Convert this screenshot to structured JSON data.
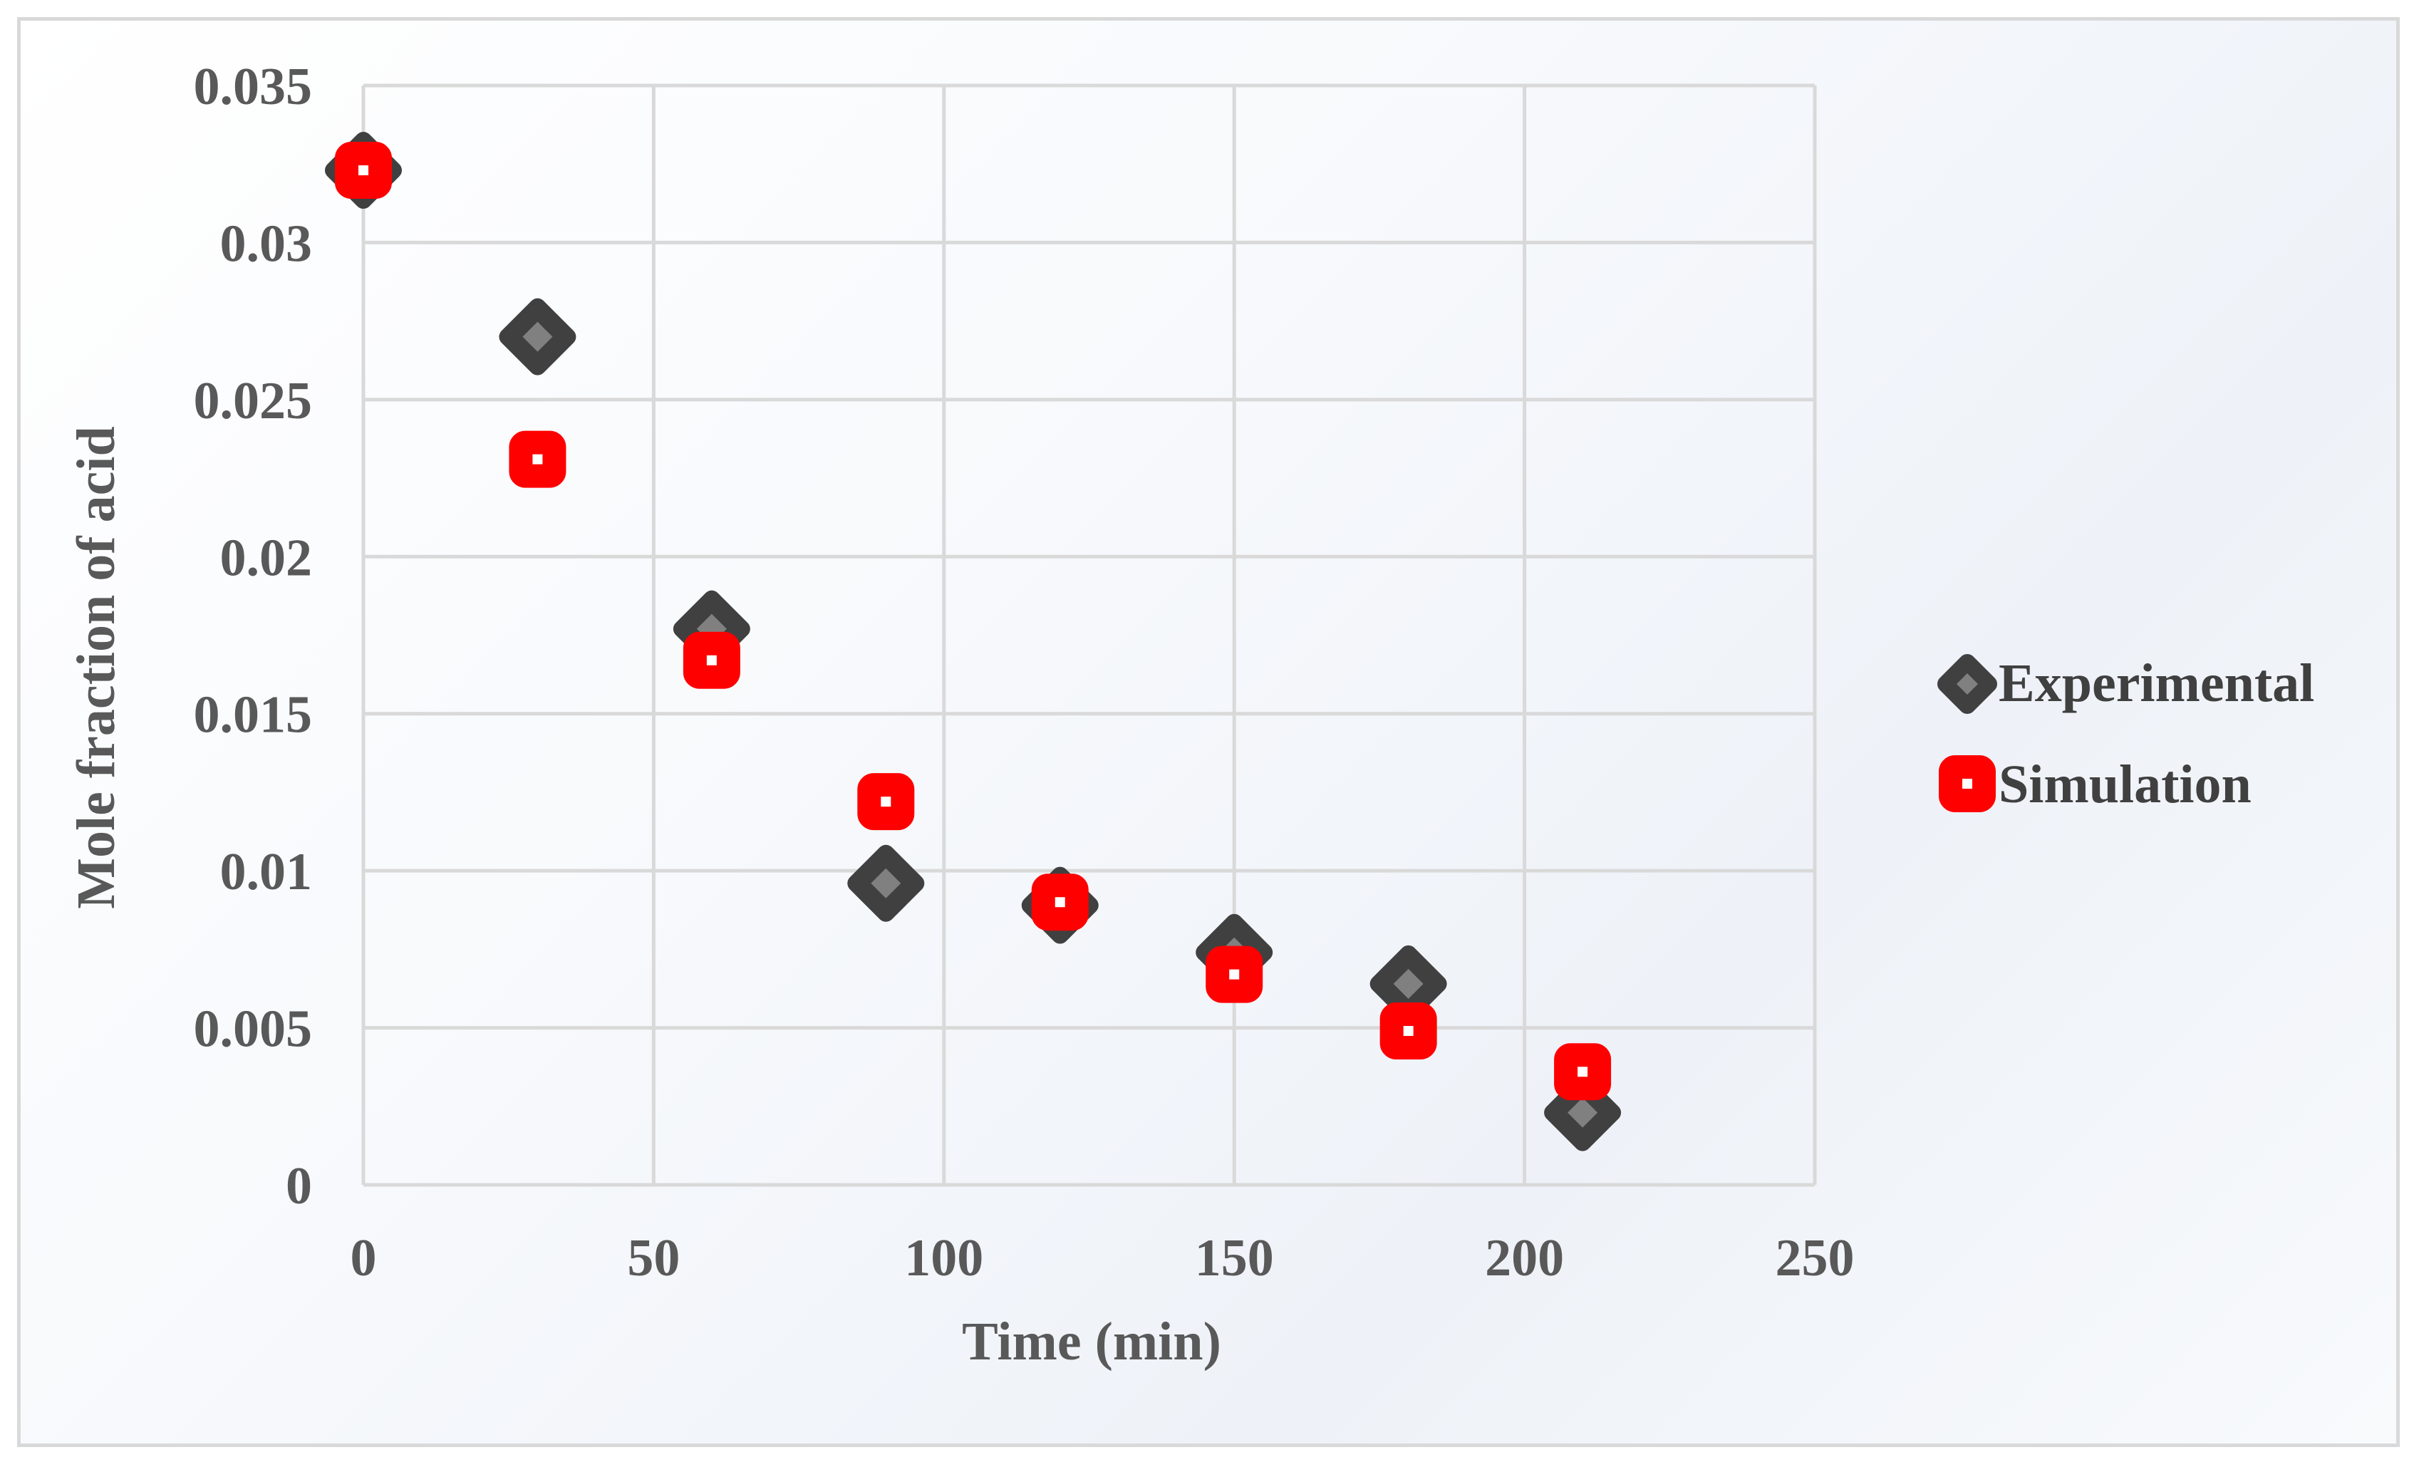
{
  "chart_data": {
    "type": "scatter",
    "title": "",
    "xlabel": "Time (min)",
    "ylabel": "Mole fraction of acid",
    "xlim": [
      0,
      250
    ],
    "ylim": [
      0,
      0.035
    ],
    "xticks": [
      0,
      50,
      100,
      150,
      200,
      250
    ],
    "xtick_labels": [
      "0",
      "50",
      "100",
      "150",
      "200",
      "250"
    ],
    "yticks": [
      0,
      0.005,
      0.01,
      0.015,
      0.02,
      0.025,
      0.03,
      0.035
    ],
    "ytick_labels": [
      "0",
      "0.005",
      "0.01",
      "0.015",
      "0.02",
      "0.025",
      "0.03",
      "0.035"
    ],
    "grid": true,
    "legend_position": "right",
    "series": [
      {
        "name": "Experimental",
        "marker": "diamond",
        "color": "#7f7f7f",
        "edge_color": "#404040",
        "x": [
          0,
          30,
          60,
          90,
          120,
          150,
          180,
          210
        ],
        "y": [
          0.0323,
          0.027,
          0.0177,
          0.0096,
          0.0089,
          0.0074,
          0.0064,
          0.0023
        ]
      },
      {
        "name": "Simulation",
        "marker": "square",
        "color": "#ff0000",
        "edge_color": "#ff0000",
        "x": [
          0,
          30,
          60,
          90,
          120,
          150,
          180,
          210
        ],
        "y": [
          0.0323,
          0.0231,
          0.0167,
          0.0122,
          0.009,
          0.0067,
          0.0049,
          0.0036
        ]
      }
    ]
  }
}
